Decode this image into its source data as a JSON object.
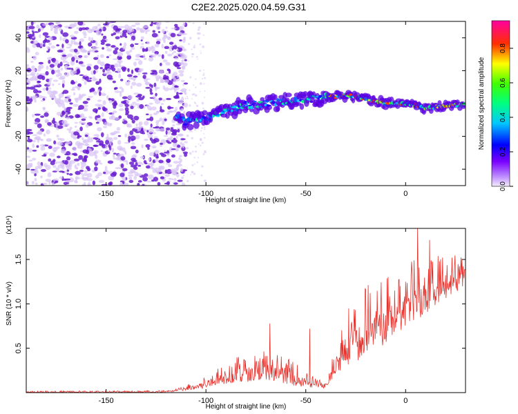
{
  "title": "C2E2.2025.020.04.59.G31",
  "colors": {
    "snr_line": "#e8302a",
    "spectrogram_background": "#ffffff",
    "speckle_dark": "#6a1fd0",
    "speckle_light": "#d9c4f5"
  },
  "chart_data": [
    {
      "type": "heatmap",
      "xlabel": "Height of straight line (km)",
      "ylabel": "Frequency (Hz)",
      "xlim": [
        -190,
        30
      ],
      "ylim": [
        -50,
        50
      ],
      "xticks": [
        -150,
        -100,
        -50,
        0
      ],
      "yticks": [
        -40,
        -20,
        0,
        20,
        40
      ],
      "colorbar": {
        "label": "Normalized spectral amplitude",
        "range": [
          0,
          0.96
        ],
        "ticks": [
          0.0,
          0.2,
          0.4,
          0.6,
          0.8
        ],
        "colormap": [
          "#e6d7ff",
          "#7b1fff",
          "#0000ff",
          "#00ffff",
          "#00ff00",
          "#ffff00",
          "#ff0000",
          "#ff00ff"
        ]
      },
      "ridge": {
        "x": [
          -115,
          -110,
          -100,
          -90,
          -80,
          -70,
          -60,
          -50,
          -40,
          -30,
          -20,
          -10,
          0,
          5,
          10,
          20,
          30
        ],
        "y": [
          -8,
          -11,
          -9,
          -5,
          -1,
          0,
          1,
          2,
          4,
          5,
          3,
          0,
          0,
          -1,
          -3,
          -1,
          -1
        ]
      }
    },
    {
      "type": "line",
      "xlabel": "Height of straight line (km)",
      "ylabel": "SNR (10 * v/v)",
      "yscale_label": "(x10⁴)",
      "xlim": [
        -190,
        30
      ],
      "ylim": [
        0,
        1.85
      ],
      "xticks": [
        -150,
        -100,
        -50,
        0
      ],
      "yticks": [
        0.5,
        1.0,
        1.5
      ],
      "ytick_labels": [
        "0.5",
        "1.0",
        "1.5"
      ],
      "envelope": {
        "x": [
          -190,
          -150,
          -120,
          -110,
          -100,
          -90,
          -80,
          -70,
          -60,
          -50,
          -40,
          -35,
          -30,
          -20,
          -10,
          0,
          10,
          20,
          30
        ],
        "low": [
          0.0,
          0.0,
          0.0,
          0.02,
          0.05,
          0.1,
          0.12,
          0.15,
          0.1,
          0.05,
          0.05,
          0.2,
          0.3,
          0.4,
          0.55,
          0.75,
          0.85,
          1.05,
          1.2
        ],
        "high": [
          0.02,
          0.02,
          0.03,
          0.08,
          0.2,
          0.35,
          0.45,
          0.5,
          0.4,
          0.25,
          0.1,
          0.55,
          0.95,
          1.2,
          1.3,
          1.45,
          1.6,
          1.55,
          1.6
        ],
        "peaks": [
          {
            "x": 6,
            "y": 1.85
          },
          {
            "x": -48,
            "y": 0.72
          },
          {
            "x": -68,
            "y": 0.78
          },
          {
            "x": 12,
            "y": 1.72
          }
        ]
      }
    }
  ]
}
